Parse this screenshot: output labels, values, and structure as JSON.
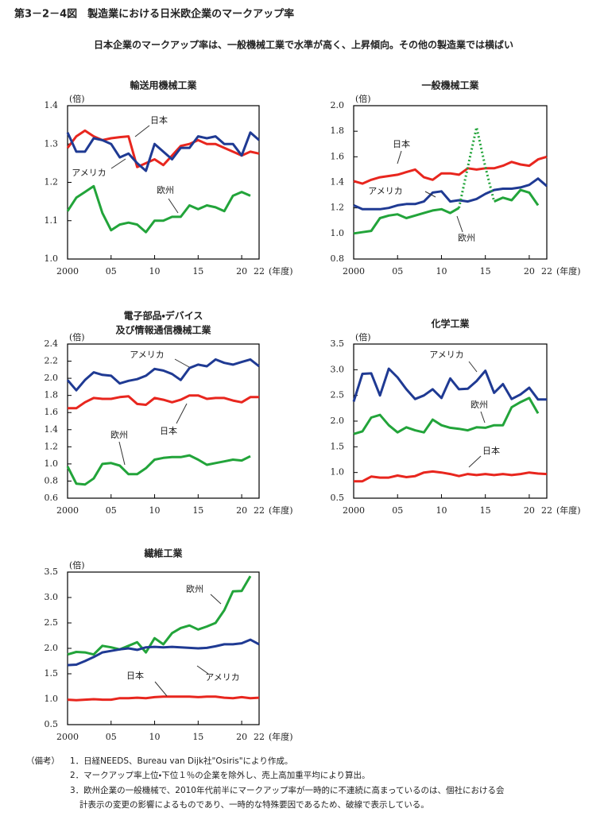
{
  "header": {
    "title": "第3－2－4図　製造業における日米欧企業のマークアップ率",
    "subtitle": "日本企業のマークアップ率は、一般機械工業で水準が高く、上昇傾向。その他の製造業では横ばい"
  },
  "chart_data": [
    {
      "type": "line",
      "title": "輸送用機械工業",
      "y_unit": "(倍)",
      "x_unit": "(年度)",
      "x": [
        2000,
        2001,
        2002,
        2003,
        2004,
        2005,
        2006,
        2007,
        2008,
        2009,
        2010,
        2011,
        2012,
        2013,
        2014,
        2015,
        2016,
        2017,
        2018,
        2019,
        2020,
        2021,
        2022
      ],
      "xlim": [
        2000,
        2022
      ],
      "xticks": [
        2000,
        {
          "value": 2005,
          "label": "05"
        },
        {
          "value": 2010,
          "label": "10"
        },
        {
          "value": 2015,
          "label": "15"
        },
        {
          "value": 2020,
          "label": "20"
        },
        {
          "value": 2022,
          "label": "22"
        }
      ],
      "ylim": [
        1.0,
        1.4
      ],
      "yticks": [
        {
          "value": 1.0,
          "label": "1.0"
        },
        1.1,
        1.2,
        1.3,
        1.4
      ],
      "series": [
        {
          "name": "日本",
          "color": "#e8261e",
          "values": [
            1.29,
            1.32,
            1.335,
            1.32,
            1.31,
            1.315,
            1.318,
            1.32,
            1.24,
            1.25,
            1.26,
            1.245,
            1.27,
            1.295,
            1.3,
            1.31,
            1.3,
            1.3,
            1.29,
            1.28,
            1.27,
            1.28,
            1.275
          ]
        },
        {
          "name": "アメリカ",
          "color": "#1f3a93",
          "values": [
            1.33,
            1.28,
            1.28,
            1.315,
            1.31,
            1.3,
            1.265,
            1.275,
            1.25,
            1.23,
            1.3,
            1.28,
            1.26,
            1.29,
            1.29,
            1.32,
            1.315,
            1.32,
            1.3,
            1.3,
            1.27,
            1.33,
            1.31
          ]
        },
        {
          "name": "欧州",
          "color": "#22a43a",
          "values": [
            1.125,
            1.16,
            1.175,
            1.19,
            1.12,
            1.075,
            1.09,
            1.095,
            1.09,
            1.07,
            1.1,
            1.1,
            1.11,
            1.11,
            1.14,
            1.13,
            1.14,
            1.135,
            1.125,
            1.165,
            1.175,
            1.165,
            null
          ]
        }
      ]
    },
    {
      "type": "line",
      "title": "一般機械工業",
      "y_unit": "(倍)",
      "x_unit": "(年度)",
      "x": [
        2000,
        2001,
        2002,
        2003,
        2004,
        2005,
        2006,
        2007,
        2008,
        2009,
        2010,
        2011,
        2012,
        2013,
        2014,
        2015,
        2016,
        2017,
        2018,
        2019,
        2020,
        2021,
        2022
      ],
      "xlim": [
        2000,
        2022
      ],
      "xticks": [
        2000,
        {
          "value": 2005,
          "label": "05"
        },
        {
          "value": 2010,
          "label": "10"
        },
        {
          "value": 2015,
          "label": "15"
        },
        {
          "value": 2020,
          "label": "20"
        },
        {
          "value": 2022,
          "label": "22"
        }
      ],
      "ylim": [
        0.8,
        2.0
      ],
      "yticks": [
        0.8,
        {
          "value": 1.0,
          "label": "1.0"
        },
        1.2,
        1.4,
        1.6,
        1.8,
        {
          "value": 2.0,
          "label": "2.0"
        }
      ],
      "series": [
        {
          "name": "日本",
          "color": "#e8261e",
          "values": [
            1.41,
            1.39,
            1.42,
            1.44,
            1.45,
            1.46,
            1.48,
            1.5,
            1.44,
            1.42,
            1.47,
            1.47,
            1.46,
            1.51,
            1.5,
            1.51,
            1.51,
            1.53,
            1.56,
            1.54,
            1.53,
            1.58,
            1.6
          ]
        },
        {
          "name": "アメリカ",
          "color": "#1f3a93",
          "values": [
            1.22,
            1.19,
            1.19,
            1.19,
            1.2,
            1.22,
            1.23,
            1.23,
            1.25,
            1.32,
            1.33,
            1.25,
            1.26,
            1.25,
            1.27,
            1.31,
            1.34,
            1.35,
            1.35,
            1.36,
            1.38,
            1.43,
            1.37
          ]
        },
        {
          "name": "欧州",
          "color": "#22a43a",
          "values": [
            1.0,
            1.01,
            1.02,
            1.12,
            1.14,
            1.15,
            1.12,
            1.14,
            1.16,
            1.18,
            1.19,
            1.16,
            1.2,
            null,
            null,
            null,
            1.25,
            1.28,
            1.26,
            1.34,
            1.32,
            1.22,
            null
          ]
        },
        {
          "color": "#22a43a",
          "style": "dotted",
          "values": [
            null,
            null,
            null,
            null,
            null,
            null,
            null,
            null,
            null,
            null,
            null,
            null,
            1.2,
            1.52,
            1.83,
            1.52,
            1.25,
            null,
            null,
            null,
            null,
            null,
            null
          ]
        }
      ]
    },
    {
      "type": "line",
      "title": [
        "電子部品・デバイス",
        "及び情報通信機械工業"
      ],
      "y_unit": "(倍)",
      "x_unit": "(年度)",
      "x": [
        2000,
        2001,
        2002,
        2003,
        2004,
        2005,
        2006,
        2007,
        2008,
        2009,
        2010,
        2011,
        2012,
        2013,
        2014,
        2015,
        2016,
        2017,
        2018,
        2019,
        2020,
        2021,
        2022
      ],
      "xlim": [
        2000,
        2022
      ],
      "xticks": [
        2000,
        {
          "value": 2005,
          "label": "05"
        },
        {
          "value": 2010,
          "label": "10"
        },
        {
          "value": 2015,
          "label": "15"
        },
        {
          "value": 2020,
          "label": "20"
        },
        {
          "value": 2022,
          "label": "22"
        }
      ],
      "ylim": [
        0.6,
        2.4
      ],
      "yticks": [
        0.6,
        0.8,
        {
          "value": 1.0,
          "label": "1.0"
        },
        1.2,
        1.4,
        1.6,
        1.8,
        {
          "value": 2.0,
          "label": "2.0"
        },
        2.2,
        2.4
      ],
      "series": [
        {
          "name": "アメリカ",
          "color": "#1f3a93",
          "values": [
            1.98,
            1.86,
            1.98,
            2.07,
            2.04,
            2.03,
            1.94,
            1.97,
            1.99,
            2.03,
            2.11,
            2.09,
            2.05,
            1.98,
            2.12,
            2.16,
            2.14,
            2.22,
            2.18,
            2.16,
            2.19,
            2.22,
            2.14
          ]
        },
        {
          "name": "日本",
          "color": "#e8261e",
          "values": [
            1.65,
            1.65,
            1.72,
            1.77,
            1.76,
            1.76,
            1.78,
            1.79,
            1.7,
            1.69,
            1.77,
            1.75,
            1.72,
            1.75,
            1.8,
            1.8,
            1.76,
            1.77,
            1.77,
            1.74,
            1.72,
            1.78,
            1.78
          ]
        },
        {
          "name": "欧州",
          "color": "#22a43a",
          "values": [
            0.97,
            0.77,
            0.76,
            0.83,
            1.0,
            1.01,
            0.98,
            0.88,
            0.88,
            0.95,
            1.05,
            1.07,
            1.08,
            1.08,
            1.1,
            1.05,
            0.99,
            1.01,
            1.03,
            1.05,
            1.04,
            1.09,
            null
          ]
        }
      ]
    },
    {
      "type": "line",
      "title": "化学工業",
      "y_unit": "(倍)",
      "x_unit": "(年度)",
      "x": [
        2000,
        2001,
        2002,
        2003,
        2004,
        2005,
        2006,
        2007,
        2008,
        2009,
        2010,
        2011,
        2012,
        2013,
        2014,
        2015,
        2016,
        2017,
        2018,
        2019,
        2020,
        2021,
        2022
      ],
      "xlim": [
        2000,
        2022
      ],
      "xticks": [
        2000,
        {
          "value": 2005,
          "label": "05"
        },
        {
          "value": 2010,
          "label": "10"
        },
        {
          "value": 2015,
          "label": "15"
        },
        {
          "value": 2020,
          "label": "20"
        },
        {
          "value": 2022,
          "label": "22"
        }
      ],
      "ylim": [
        0.5,
        3.5
      ],
      "yticks": [
        0.5,
        {
          "value": 1.0,
          "label": "1.0"
        },
        1.5,
        {
          "value": 2.0,
          "label": "2.0"
        },
        2.5,
        {
          "value": 3.0,
          "label": "3.0"
        },
        3.5
      ],
      "series": [
        {
          "name": "アメリカ",
          "color": "#1f3a93",
          "values": [
            2.38,
            2.92,
            2.93,
            2.5,
            3.02,
            2.85,
            2.62,
            2.43,
            2.5,
            2.62,
            2.45,
            2.83,
            2.62,
            2.63,
            2.78,
            2.98,
            2.55,
            2.72,
            2.43,
            2.52,
            2.65,
            2.42,
            2.42
          ]
        },
        {
          "name": "欧州",
          "color": "#22a43a",
          "values": [
            1.75,
            1.8,
            2.07,
            2.12,
            1.92,
            1.78,
            1.88,
            1.82,
            1.78,
            2.03,
            1.92,
            1.87,
            1.85,
            1.82,
            1.88,
            1.87,
            1.92,
            1.92,
            2.27,
            2.37,
            2.45,
            2.15,
            null
          ]
        },
        {
          "name": "日本",
          "color": "#e8261e",
          "values": [
            0.83,
            0.83,
            0.92,
            0.9,
            0.9,
            0.94,
            0.91,
            0.93,
            1.0,
            1.02,
            1.0,
            0.97,
            0.93,
            0.97,
            0.95,
            0.97,
            0.95,
            0.97,
            0.95,
            0.97,
            1.0,
            0.98,
            0.97
          ]
        }
      ]
    },
    {
      "type": "line",
      "title": "繊維工業",
      "y_unit": "(倍)",
      "x_unit": "(年度)",
      "x": [
        2000,
        2001,
        2002,
        2003,
        2004,
        2005,
        2006,
        2007,
        2008,
        2009,
        2010,
        2011,
        2012,
        2013,
        2014,
        2015,
        2016,
        2017,
        2018,
        2019,
        2020,
        2021,
        2022
      ],
      "xlim": [
        2000,
        2022
      ],
      "xticks": [
        2000,
        {
          "value": 2005,
          "label": "05"
        },
        {
          "value": 2010,
          "label": "10"
        },
        {
          "value": 2015,
          "label": "15"
        },
        {
          "value": 2020,
          "label": "20"
        },
        {
          "value": 2022,
          "label": "22"
        }
      ],
      "ylim": [
        0.5,
        3.5
      ],
      "yticks": [
        0.5,
        {
          "value": 1.0,
          "label": "1.0"
        },
        1.5,
        {
          "value": 2.0,
          "label": "2.0"
        },
        2.5,
        {
          "value": 3.0,
          "label": "3.0"
        },
        3.5
      ],
      "series": [
        {
          "name": "欧州",
          "color": "#22a43a",
          "values": [
            1.88,
            1.93,
            1.92,
            1.88,
            2.05,
            2.02,
            1.98,
            2.05,
            2.12,
            1.92,
            2.2,
            2.08,
            2.3,
            2.4,
            2.45,
            2.37,
            2.43,
            2.5,
            2.75,
            3.12,
            3.13,
            3.42,
            null
          ]
        },
        {
          "name": "アメリカ",
          "color": "#1f3a93",
          "values": [
            1.67,
            1.68,
            1.75,
            1.83,
            1.92,
            1.95,
            1.98,
            2.0,
            1.97,
            2.02,
            2.03,
            2.02,
            2.03,
            2.02,
            2.01,
            2.0,
            2.01,
            2.04,
            2.08,
            2.08,
            2.1,
            2.17,
            2.08
          ]
        },
        {
          "name": "日本",
          "color": "#e8261e",
          "values": [
            0.99,
            0.98,
            0.99,
            1.0,
            0.99,
            0.99,
            1.02,
            1.02,
            1.03,
            1.02,
            1.04,
            1.05,
            1.05,
            1.05,
            1.05,
            1.04,
            1.05,
            1.05,
            1.03,
            1.02,
            1.04,
            1.02,
            1.03
          ]
        }
      ]
    }
  ],
  "notes": {
    "label": "（備考）",
    "items": [
      "1．日経NEEDS、Bureau van Dijk社\"Osiris\"により作成。",
      "2．マークアップ率上位・下位１％の企業を除外し、売上高加重平均により算出。",
      "3．欧州企業の一般機械で、2010年代前半にマークアップ率が一時的に不連続に高まっているのは、個社における会",
      "計表示の変更の影響によるものであり、一時的な特殊要因であるため、破線で表示している。"
    ]
  }
}
